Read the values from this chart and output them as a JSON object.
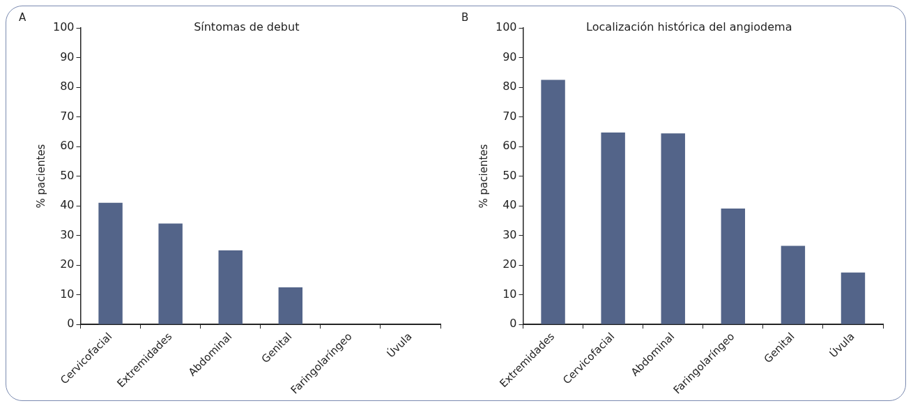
{
  "chart_data": [
    {
      "type": "bar",
      "title": "Síntomas de debut",
      "ylabel": "% pacientes",
      "annotations": [
        "A"
      ],
      "categories": [
        "Cervicofacial",
        "Extremidades",
        "Abdominal",
        "Genital",
        "Faringolaríngeo",
        "Úvula"
      ],
      "values": [
        41,
        34,
        25,
        12.5,
        0,
        0
      ],
      "color": "#536489",
      "ylim": [
        0,
        100
      ],
      "yticks": [
        0,
        10,
        20,
        30,
        40,
        50,
        60,
        70,
        80,
        90,
        100
      ],
      "grid": false,
      "legend": false
    },
    {
      "type": "bar",
      "title": "Localización histórica del angiodema",
      "ylabel": "% pacientes",
      "annotations": [
        "B"
      ],
      "categories": [
        "Extremidades",
        "Cervicofacial",
        "Abdominal",
        "Faringolaríngeo",
        "Genital",
        "Úvula"
      ],
      "values": [
        82.5,
        64.7,
        64.4,
        39.1,
        26.5,
        17.5
      ],
      "color": "#536489",
      "ylim": [
        0,
        100
      ],
      "yticks": [
        0,
        10,
        20,
        30,
        40,
        50,
        60,
        70,
        80,
        90,
        100
      ],
      "grid": false,
      "legend": false
    }
  ]
}
